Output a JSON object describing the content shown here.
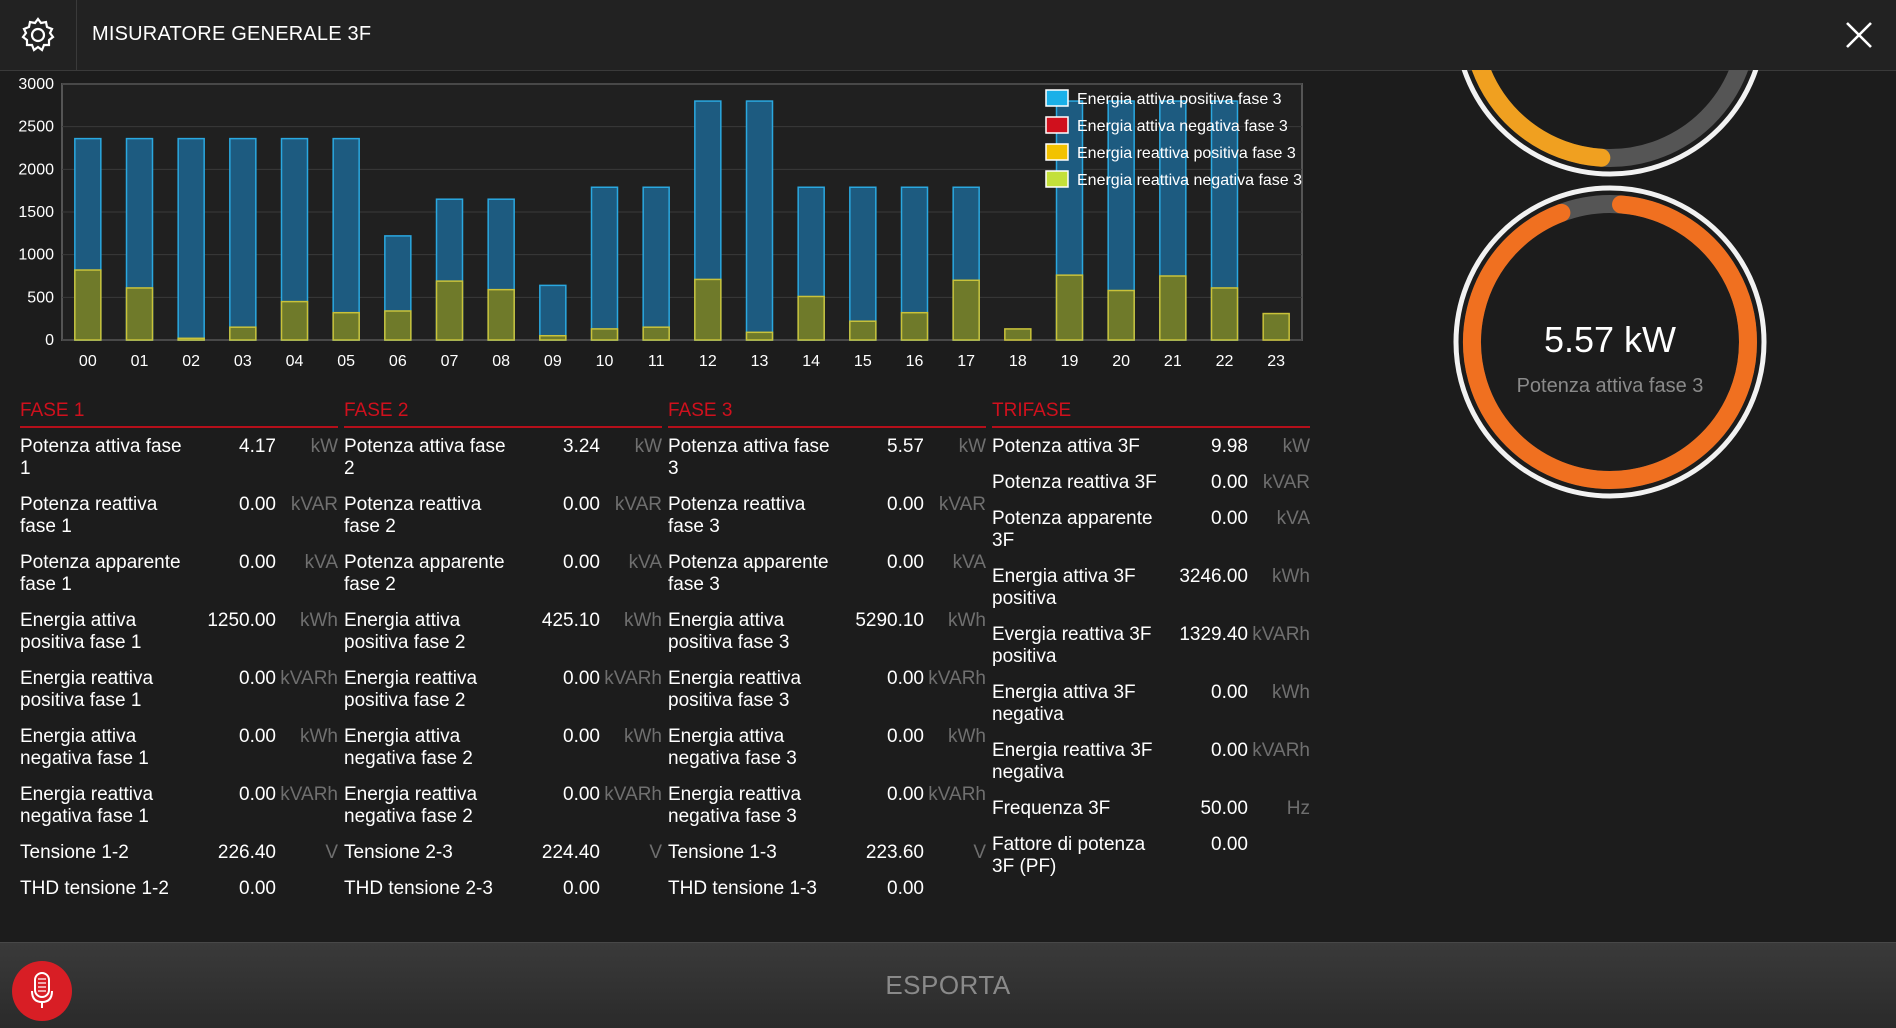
{
  "header": {
    "title": "MISURATORE GENERALE 3F",
    "settings_icon": "gear-icon",
    "close_icon": "close-icon"
  },
  "chart_data": {
    "type": "bar",
    "categories": [
      "00",
      "01",
      "02",
      "03",
      "04",
      "05",
      "06",
      "07",
      "08",
      "09",
      "10",
      "11",
      "12",
      "13",
      "14",
      "15",
      "16",
      "17",
      "18",
      "19",
      "20",
      "21",
      "22",
      "23"
    ],
    "ylim": [
      0,
      3000
    ],
    "yticks": [
      0,
      500,
      1000,
      1500,
      2000,
      2500,
      3000
    ],
    "grid": true,
    "legend_position": "top-right",
    "series": [
      {
        "name": "Energia attiva positiva fase 3",
        "color": "#1ab0e8",
        "values": [
          2360,
          2360,
          2360,
          2360,
          2360,
          2360,
          1220,
          1650,
          1650,
          640,
          1790,
          1790,
          2800,
          2800,
          1790,
          1790,
          1790,
          1790,
          0,
          2800,
          2800,
          2800,
          2800,
          0
        ]
      },
      {
        "name": "Energia attiva negativa fase 3",
        "color": "#d0101d",
        "values": [
          0,
          0,
          0,
          0,
          0,
          0,
          0,
          0,
          0,
          0,
          0,
          0,
          0,
          0,
          0,
          0,
          0,
          0,
          0,
          0,
          0,
          0,
          0,
          0
        ]
      },
      {
        "name": "Energia reattiva positiva fase 3",
        "color": "#f2c200",
        "values": [
          820,
          610,
          20,
          150,
          450,
          320,
          340,
          690,
          590,
          50,
          130,
          150,
          710,
          90,
          510,
          220,
          320,
          700,
          130,
          760,
          580,
          750,
          610,
          310
        ]
      },
      {
        "name": "Energia reattiva negativa fase 3",
        "color": "#c3e03a",
        "values": [
          0,
          0,
          0,
          0,
          0,
          0,
          0,
          0,
          0,
          0,
          0,
          0,
          0,
          0,
          0,
          0,
          0,
          0,
          0,
          0,
          0,
          0,
          0,
          0
        ]
      }
    ]
  },
  "columns": [
    {
      "title": "FASE 1",
      "rows": [
        {
          "label": "Potenza attiva fase 1",
          "value": "4.17",
          "unit": "kW"
        },
        {
          "label": "Potenza reattiva fase 1",
          "value": "0.00",
          "unit": "kVAR"
        },
        {
          "label": "Potenza apparente fase 1",
          "value": "0.00",
          "unit": "kVA"
        },
        {
          "label": "Energia attiva positiva fase 1",
          "value": "1250.00",
          "unit": "kWh"
        },
        {
          "label": "Energia reattiva positiva fase 1",
          "value": "0.00",
          "unit": "kVARh"
        },
        {
          "label": "Energia attiva negativa fase 1",
          "value": "0.00",
          "unit": "kWh"
        },
        {
          "label": "Energia reattiva negativa fase 1",
          "value": "0.00",
          "unit": "kVARh"
        },
        {
          "label": "Tensione 1-2",
          "value": "226.40",
          "unit": "V"
        },
        {
          "label": "THD tensione 1-2",
          "value": "0.00",
          "unit": ""
        }
      ]
    },
    {
      "title": "FASE 2",
      "rows": [
        {
          "label": "Potenza attiva fase 2",
          "value": "3.24",
          "unit": "kW"
        },
        {
          "label": "Potenza reattiva fase 2",
          "value": "0.00",
          "unit": "kVAR"
        },
        {
          "label": "Potenza apparente fase 2",
          "value": "0.00",
          "unit": "kVA"
        },
        {
          "label": "Energia attiva positiva fase 2",
          "value": "425.10",
          "unit": "kWh"
        },
        {
          "label": "Energia reattiva positiva fase 2",
          "value": "0.00",
          "unit": "kVARh"
        },
        {
          "label": "Energia attiva negativa fase 2",
          "value": "0.00",
          "unit": "kWh"
        },
        {
          "label": "Energia reattiva negativa fase 2",
          "value": "0.00",
          "unit": "kVARh"
        },
        {
          "label": "Tensione 2-3",
          "value": "224.40",
          "unit": "V"
        },
        {
          "label": "THD tensione 2-3",
          "value": "0.00",
          "unit": ""
        }
      ]
    },
    {
      "title": "FASE 3",
      "rows": [
        {
          "label": "Potenza attiva fase 3",
          "value": "5.57",
          "unit": "kW"
        },
        {
          "label": "Potenza reattiva fase 3",
          "value": "0.00",
          "unit": "kVAR"
        },
        {
          "label": "Potenza apparente fase 3",
          "value": "0.00",
          "unit": "kVA"
        },
        {
          "label": "Energia attiva positiva fase 3",
          "value": "5290.10",
          "unit": "kWh"
        },
        {
          "label": "Energia reattiva positiva fase 3",
          "value": "0.00",
          "unit": "kVARh"
        },
        {
          "label": "Energia attiva negativa fase 3",
          "value": "0.00",
          "unit": "kWh"
        },
        {
          "label": "Energia reattiva negativa fase 3",
          "value": "0.00",
          "unit": "kVARh"
        },
        {
          "label": "Tensione 1-3",
          "value": "223.60",
          "unit": "V"
        },
        {
          "label": "THD tensione 1-3",
          "value": "0.00",
          "unit": ""
        }
      ]
    },
    {
      "title": "TRIFASE",
      "rows": [
        {
          "label": "Potenza attiva 3F",
          "value": "9.98",
          "unit": "kW"
        },
        {
          "label": "Potenza reattiva 3F",
          "value": "0.00",
          "unit": "kVAR"
        },
        {
          "label": "Potenza apparente 3F",
          "value": "0.00",
          "unit": "kVA"
        },
        {
          "label": "Energia attiva 3F positiva",
          "value": "3246.00",
          "unit": "kWh"
        },
        {
          "label": "Evergia reattiva 3F positiva",
          "value": "1329.40",
          "unit": "kVARh"
        },
        {
          "label": "Energia attiva 3F negativa",
          "value": "0.00",
          "unit": "kWh"
        },
        {
          "label": "Energia reattiva 3F negativa",
          "value": "0.00",
          "unit": "kVARh"
        },
        {
          "label": "Frequenza 3F",
          "value": "50.00",
          "unit": "Hz"
        },
        {
          "label": "Fattore di potenza 3F (PF)",
          "value": "0.00",
          "unit": ""
        }
      ]
    }
  ],
  "gauges": [
    {
      "value_text": "",
      "label": "",
      "fraction": 0.38,
      "color": "#f0a020"
    },
    {
      "value_text": "5.57 kW",
      "label": "Potenza attiva fase 3",
      "fraction": 0.93,
      "color": "#f07020"
    }
  ],
  "footer": {
    "export_label": "ESPORTA",
    "mic_icon": "microphone-icon"
  }
}
